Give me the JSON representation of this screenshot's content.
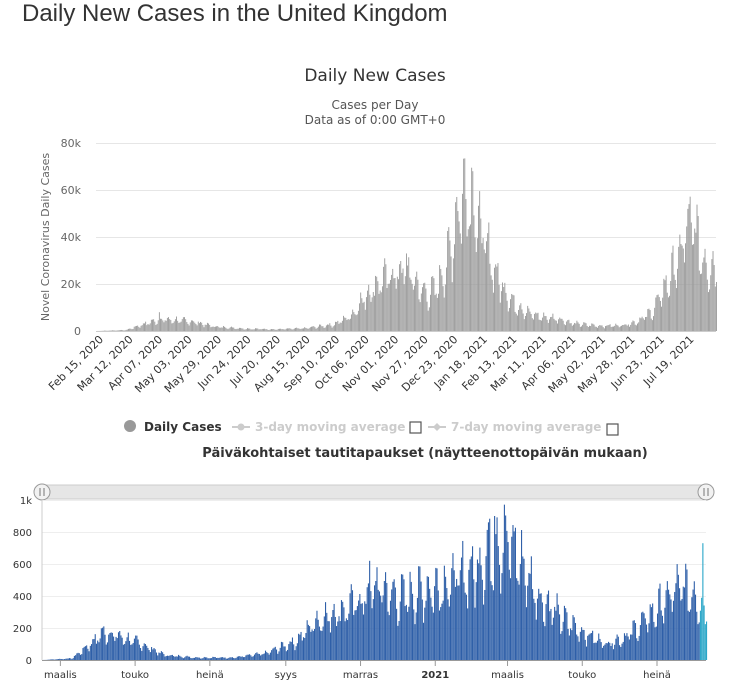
{
  "page": {
    "title": "Daily New Cases in the United Kingdom"
  },
  "chart_data": [
    {
      "type": "bar",
      "title": "Daily New Cases",
      "subtitle": [
        "Cases per Day",
        "Data as of 0:00 GMT+0"
      ],
      "ylabel": "Novel Coronavirus Daily Cases",
      "xlabel": "",
      "ylim": [
        0,
        80000
      ],
      "y_ticks": [
        "0",
        "20k",
        "40k",
        "60k",
        "80k"
      ],
      "x_start": "2020-02-15",
      "x_end": "2021-08-10",
      "x_ticks": [
        "Feb 15, 2020",
        "Mar 12, 2020",
        "Apr 07, 2020",
        "May 03, 2020",
        "May 29, 2020",
        "Jun 24, 2020",
        "Jul 20, 2020",
        "Aug 15, 2020",
        "Sep 10, 2020",
        "Oct 06, 2020",
        "Nov 01, 2020",
        "Nov 27, 2020",
        "Dec 23, 2020",
        "Jan 18, 2021",
        "Feb 13, 2021",
        "Mar 11, 2021",
        "Apr 06, 2021",
        "May 02, 2021",
        "May 28, 2021",
        "Jun 23, 2021",
        "Jul 19, 2021"
      ],
      "grid": true,
      "color": "#999999",
      "series_trend": [
        {
          "x": "2020-02-15",
          "y": 0
        },
        {
          "x": "2020-03-12",
          "y": 400
        },
        {
          "x": "2020-03-25",
          "y": 2500
        },
        {
          "x": "2020-04-10",
          "y": 4800
        },
        {
          "x": "2020-04-25",
          "y": 4500
        },
        {
          "x": "2020-05-10",
          "y": 3800
        },
        {
          "x": "2020-05-29",
          "y": 1800
        },
        {
          "x": "2020-06-24",
          "y": 1000
        },
        {
          "x": "2020-07-20",
          "y": 700
        },
        {
          "x": "2020-08-15",
          "y": 1100
        },
        {
          "x": "2020-09-10",
          "y": 2800
        },
        {
          "x": "2020-09-25",
          "y": 6500
        },
        {
          "x": "2020-10-06",
          "y": 14000
        },
        {
          "x": "2020-10-20",
          "y": 21000
        },
        {
          "x": "2020-11-01",
          "y": 23000
        },
        {
          "x": "2020-11-11",
          "y": 26000
        },
        {
          "x": "2020-11-20",
          "y": 20000
        },
        {
          "x": "2020-11-30",
          "y": 15000
        },
        {
          "x": "2020-12-10",
          "y": 19000
        },
        {
          "x": "2020-12-20",
          "y": 33000
        },
        {
          "x": "2020-12-29",
          "y": 55000
        },
        {
          "x": "2021-01-05",
          "y": 60000
        },
        {
          "x": "2021-01-12",
          "y": 48000
        },
        {
          "x": "2021-01-20",
          "y": 36000
        },
        {
          "x": "2021-01-30",
          "y": 23000
        },
        {
          "x": "2021-02-13",
          "y": 12000
        },
        {
          "x": "2021-03-01",
          "y": 7000
        },
        {
          "x": "2021-03-11",
          "y": 5800
        },
        {
          "x": "2021-03-25",
          "y": 5200
        },
        {
          "x": "2021-04-06",
          "y": 3200
        },
        {
          "x": "2021-04-20",
          "y": 2500
        },
        {
          "x": "2021-05-02",
          "y": 2100
        },
        {
          "x": "2021-05-20",
          "y": 2400
        },
        {
          "x": "2021-06-01",
          "y": 3800
        },
        {
          "x": "2021-06-15",
          "y": 8000
        },
        {
          "x": "2021-06-28",
          "y": 20000
        },
        {
          "x": "2021-07-10",
          "y": 32000
        },
        {
          "x": "2021-07-17",
          "y": 48000
        },
        {
          "x": "2021-07-22",
          "y": 42000
        },
        {
          "x": "2021-07-30",
          "y": 29000
        },
        {
          "x": "2021-08-10",
          "y": 26000
        }
      ],
      "peaks": [
        {
          "x": "2021-01-09",
          "y": 68000
        },
        {
          "x": "2021-07-17",
          "y": 54000
        },
        {
          "x": "2020-11-12",
          "y": 33000
        },
        {
          "x": "2020-04-10",
          "y": 8000
        }
      ],
      "legend": [
        {
          "name": "Daily Cases",
          "active": true
        },
        {
          "name": "3-day moving average",
          "active": false
        },
        {
          "name": "7-day moving average",
          "active": false
        }
      ]
    },
    {
      "type": "bar",
      "title": "Päiväkohtaiset tautitapaukset (näytteenottopäivän mukaan)",
      "ylim": [
        0,
        1000
      ],
      "y_ticks": [
        "0",
        "200",
        "400",
        "600",
        "800",
        "1k"
      ],
      "x_start": "2020-02-15",
      "x_end": "2021-08-10",
      "x_ticks": [
        {
          "label": "maalis",
          "date": "2020-03-01",
          "bold": false
        },
        {
          "label": "touko",
          "date": "2020-05-01",
          "bold": false
        },
        {
          "label": "heinä",
          "date": "2020-07-01",
          "bold": false
        },
        {
          "label": "syys",
          "date": "2020-09-01",
          "bold": false
        },
        {
          "label": "marras",
          "date": "2020-11-01",
          "bold": false
        },
        {
          "label": "2021",
          "date": "2021-01-01",
          "bold": true
        },
        {
          "label": "maalis",
          "date": "2021-03-01",
          "bold": false
        },
        {
          "label": "touko",
          "date": "2021-05-01",
          "bold": false
        },
        {
          "label": "heinä",
          "date": "2021-07-01",
          "bold": false
        }
      ],
      "color": "#2e5fa8",
      "highlight_color": "#2aa6c8",
      "series_trend": [
        {
          "x": "2020-02-15",
          "y": 0
        },
        {
          "x": "2020-03-10",
          "y": 10
        },
        {
          "x": "2020-03-22",
          "y": 80
        },
        {
          "x": "2020-04-05",
          "y": 170
        },
        {
          "x": "2020-04-15",
          "y": 150
        },
        {
          "x": "2020-05-05",
          "y": 100
        },
        {
          "x": "2020-05-25",
          "y": 30
        },
        {
          "x": "2020-06-20",
          "y": 15
        },
        {
          "x": "2020-07-20",
          "y": 15
        },
        {
          "x": "2020-08-15",
          "y": 40
        },
        {
          "x": "2020-09-10",
          "y": 120
        },
        {
          "x": "2020-09-25",
          "y": 240
        },
        {
          "x": "2020-10-15",
          "y": 300
        },
        {
          "x": "2020-11-01",
          "y": 360
        },
        {
          "x": "2020-11-15",
          "y": 450
        },
        {
          "x": "2020-12-01",
          "y": 380
        },
        {
          "x": "2020-12-20",
          "y": 420
        },
        {
          "x": "2021-01-10",
          "y": 470
        },
        {
          "x": "2021-02-01",
          "y": 550
        },
        {
          "x": "2021-02-20",
          "y": 740
        },
        {
          "x": "2021-03-05",
          "y": 700
        },
        {
          "x": "2021-03-25",
          "y": 400
        },
        {
          "x": "2021-04-15",
          "y": 250
        },
        {
          "x": "2021-05-01",
          "y": 170
        },
        {
          "x": "2021-05-20",
          "y": 100
        },
        {
          "x": "2021-06-05",
          "y": 140
        },
        {
          "x": "2021-06-25",
          "y": 270
        },
        {
          "x": "2021-07-10",
          "y": 380
        },
        {
          "x": "2021-07-20",
          "y": 450
        },
        {
          "x": "2021-08-01",
          "y": 400
        },
        {
          "x": "2021-08-10",
          "y": 300
        }
      ],
      "peaks": [
        {
          "x": "2021-02-18",
          "y": 900
        },
        {
          "x": "2021-08-07",
          "y": 730
        },
        {
          "x": "2020-11-08",
          "y": 620
        },
        {
          "x": "2020-04-05",
          "y": 210
        }
      ],
      "navigator": {
        "from": "2020-02-15",
        "to": "2021-08-10"
      }
    }
  ]
}
